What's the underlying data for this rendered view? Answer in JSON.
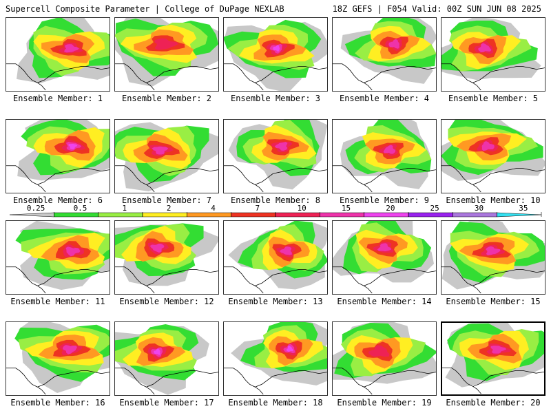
{
  "header": {
    "left_title": "Supercell Composite Parameter | College of DuPage NEXLAB",
    "right_title": "18Z GEFS | F054 Valid: 00Z SUN JUN 08 2025"
  },
  "member_prefix": "Ensemble Member: ",
  "members": [
    {
      "label": "Ensemble Member: 1",
      "peak_level": 7
    },
    {
      "label": "Ensemble Member: 2",
      "peak_level": 6
    },
    {
      "label": "Ensemble Member: 3",
      "peak_level": 8
    },
    {
      "label": "Ensemble Member: 4",
      "peak_level": 7
    },
    {
      "label": "Ensemble Member: 5",
      "peak_level": 7
    },
    {
      "label": "Ensemble Member: 6",
      "peak_level": 9
    },
    {
      "label": "Ensemble Member: 7",
      "peak_level": 7
    },
    {
      "label": "Ensemble Member: 8",
      "peak_level": 7
    },
    {
      "label": "Ensemble Member: 9",
      "peak_level": 7
    },
    {
      "label": "Ensemble Member: 10",
      "peak_level": 7
    },
    {
      "label": "Ensemble Member: 11",
      "peak_level": 7
    },
    {
      "label": "Ensemble Member: 12",
      "peak_level": 7
    },
    {
      "label": "Ensemble Member: 13",
      "peak_level": 7
    },
    {
      "label": "Ensemble Member: 14",
      "peak_level": 7
    },
    {
      "label": "Ensemble Member: 15",
      "peak_level": 7
    },
    {
      "label": "Ensemble Member: 16",
      "peak_level": 7
    },
    {
      "label": "Ensemble Member: 17",
      "peak_level": 8
    },
    {
      "label": "Ensemble Member: 18",
      "peak_level": 9
    },
    {
      "label": "Ensemble Member: 19",
      "peak_level": 6
    },
    {
      "label": "Ensemble Member: 20",
      "peak_level": 7
    }
  ],
  "selected_member": 20,
  "colorbar": {
    "ticks": [
      "0.25",
      "0.5",
      "1",
      "2",
      "4",
      "7",
      "10",
      "15",
      "20",
      "25",
      "30",
      "35"
    ],
    "colors": [
      "#c8c8c8",
      "#33dd33",
      "#99ee44",
      "#ffee22",
      "#ff9922",
      "#ee3322",
      "#ee2255",
      "#ee33aa",
      "#ee44ee",
      "#9922ee",
      "#aa77dd",
      "#33e0f0"
    ]
  }
}
